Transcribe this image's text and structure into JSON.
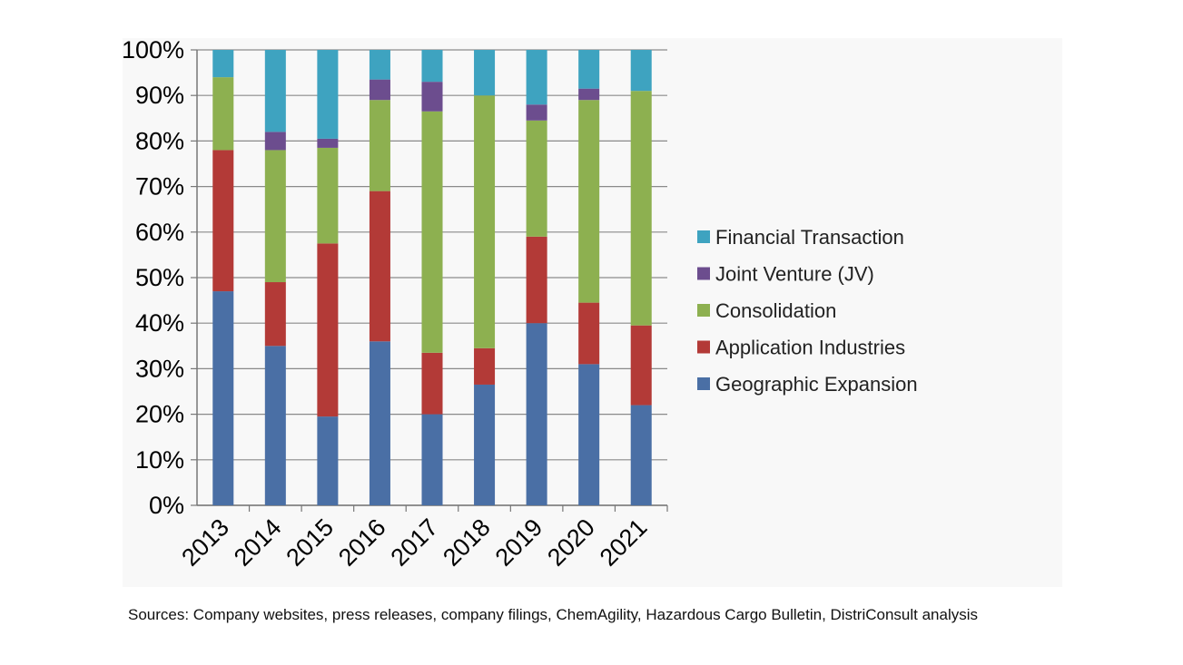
{
  "chart_data": {
    "type": "bar",
    "stacked": true,
    "title": "",
    "xlabel": "",
    "ylabel": "",
    "ylim": [
      0,
      100
    ],
    "y_ticks": [
      "0%",
      "10%",
      "20%",
      "30%",
      "40%",
      "50%",
      "60%",
      "70%",
      "80%",
      "90%",
      "100%"
    ],
    "categories": [
      "2013",
      "2014",
      "2015",
      "2016",
      "2017",
      "2018",
      "2019",
      "2020",
      "2021"
    ],
    "series": [
      {
        "name": "Geographic Expansion",
        "color": "#4a6fa5",
        "values": [
          47,
          35,
          19.5,
          36,
          20,
          26.5,
          40,
          31,
          22
        ]
      },
      {
        "name": "Application Industries",
        "color": "#b33a37",
        "values": [
          31,
          14,
          38,
          33,
          13.5,
          8,
          19,
          13.5,
          17.5
        ]
      },
      {
        "name": "Consolidation",
        "color": "#8db050",
        "values": [
          16,
          29,
          21,
          20,
          53,
          55.5,
          25.5,
          44.5,
          51.5
        ]
      },
      {
        "name": "Joint Venture (JV)",
        "color": "#6c4d8e",
        "values": [
          0,
          4,
          2,
          4.5,
          6.5,
          0,
          3.5,
          2.5,
          0
        ]
      },
      {
        "name": "Financial Transaction",
        "color": "#3ea3c0",
        "values": [
          6,
          18,
          19.5,
          6.5,
          7,
          10,
          12,
          8.5,
          9
        ]
      }
    ],
    "legend_order": [
      "Financial Transaction",
      "Joint Venture (JV)",
      "Consolidation",
      "Application Industries",
      "Geographic Expansion"
    ],
    "legend_position": "right",
    "grid": true
  },
  "footer": {
    "source": "Sources: Company websites, press releases, company filings, ChemAgility, Hazardous Cargo Bulletin, DistriConsult analysis"
  }
}
